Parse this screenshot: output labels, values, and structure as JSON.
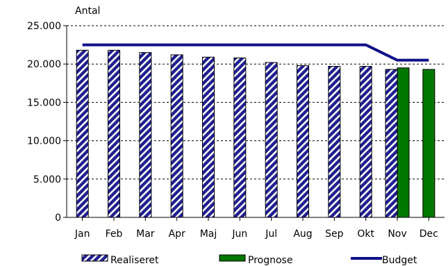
{
  "chart_data": {
    "type": "bar",
    "ylabel": "Antal",
    "ylim": [
      0,
      25000
    ],
    "yticks": [
      {
        "value": 0,
        "label": "0"
      },
      {
        "value": 5000,
        "label": "5.000"
      },
      {
        "value": 10000,
        "label": "10.000"
      },
      {
        "value": 15000,
        "label": "15.000"
      },
      {
        "value": 20000,
        "label": "20.000"
      },
      {
        "value": 25000,
        "label": "25.000"
      }
    ],
    "grid": "horizontal dashed",
    "legend_position": "bottom",
    "categories": [
      "Jan",
      "Feb",
      "Mar",
      "Apr",
      "Maj",
      "Jun",
      "Jul",
      "Aug",
      "Sep",
      "Okt",
      "Nov",
      "Dec"
    ],
    "series": [
      {
        "name": "Realiseret",
        "kind": "bar",
        "pattern": "diagonal-hatch",
        "color": "#1f1f8f",
        "values": [
          21800,
          21800,
          21500,
          21200,
          20900,
          20800,
          20200,
          19800,
          19700,
          19700,
          19300,
          null
        ]
      },
      {
        "name": "Prognose",
        "kind": "bar",
        "color": "#007800",
        "values": [
          null,
          null,
          null,
          null,
          null,
          null,
          null,
          null,
          null,
          null,
          19500,
          19300
        ]
      },
      {
        "name": "Budget",
        "kind": "line",
        "color": "#10108a",
        "values": [
          22500,
          22500,
          22500,
          22500,
          22500,
          22500,
          22500,
          22500,
          22500,
          22500,
          20500,
          20500
        ]
      }
    ]
  }
}
